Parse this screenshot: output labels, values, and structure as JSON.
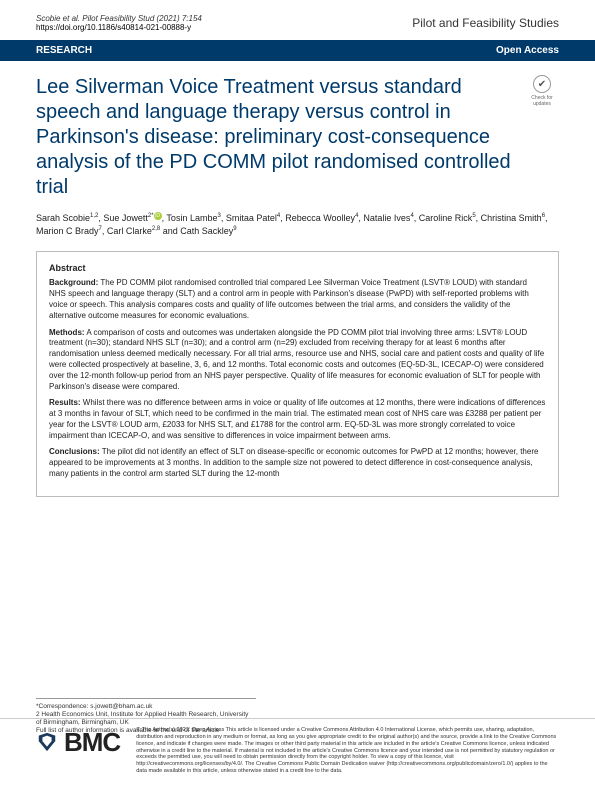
{
  "header": {
    "citation": "Scobie et al. Pilot Feasibility Stud    (2021) 7:154",
    "doi": "https://doi.org/10.1186/s40814-021-00888-y",
    "journal": "Pilot and Feasibility Studies"
  },
  "banner": {
    "left": "RESEARCH",
    "right": "Open Access"
  },
  "check": {
    "top": "Check for",
    "bottom": "updates",
    "glyph": "✔"
  },
  "title": "Lee Silverman Voice Treatment versus standard speech and language therapy versus control in Parkinson's disease: preliminary cost-consequence analysis of the PD COMM pilot randomised controlled trial",
  "authors_html": "Sarah Scobie<sup>1,2</sup>, Sue Jowett<sup>2*</sup><span class='orcid'>iD</span>, Tosin Lambe<sup>3</sup>, Smitaa Patel<sup>4</sup>, Rebecca Woolley<sup>4</sup>, Natalie Ives<sup>4</sup>, Caroline Rick<sup>5</sup>, Christina Smith<sup>6</sup>, Marion C Brady<sup>7</sup>, Carl Clarke<sup>2,8</sup> and Cath Sackley<sup>9</sup>",
  "abstract": {
    "heading": "Abstract",
    "background_label": "Background:",
    "background": " The PD COMM pilot randomised controlled trial compared Lee Silverman Voice Treatment (LSVT® LOUD) with standard NHS speech and language therapy (SLT) and a control arm in people with Parkinson's disease (PwPD) with self-reported problems with voice or speech. This analysis compares costs and quality of life outcomes between the trial arms, and considers the validity of the alternative outcome measures for economic evaluations.",
    "methods_label": "Methods:",
    "methods": " A comparison of costs and outcomes was undertaken alongside the PD COMM pilot trial involving three arms: LSVT® LOUD treatment (n=30); standard NHS SLT (n=30); and a control arm (n=29) excluded from receiving therapy for at least 6 months after randomisation unless deemed medically necessary. For all trial arms, resource use and NHS, social care and patient costs and quality of life were collected prospectively at baseline, 3, 6, and 12 months. Total economic costs and outcomes (EQ-5D-3L, ICECAP-O) were considered over the 12-month follow-up period from an NHS payer perspective. Quality of life measures for economic evaluation of SLT for people with Parkinson's disease were compared.",
    "results_label": "Results:",
    "results": " Whilst there was no difference between arms in voice or quality of life outcomes at 12 months, there were indications of differences at 3 months in favour of SLT, which need to be confirmed in the main trial. The estimated mean cost of NHS care was £3288 per patient per year for the LSVT® LOUD arm, £2033 for NHS SLT, and £1788 for the control arm. EQ-5D-3L was more strongly correlated to voice impairment than ICECAP-O, and was sensitive to differences in voice impairment between arms.",
    "conclusions_label": "Conclusions:",
    "conclusions": " The pilot did not identify an effect of SLT on disease-specific or economic outcomes for PwPD at 12 months; however, there appeared to be improvements at 3 months. In addition to the sample size not powered to detect difference in cost-consequence analysis, many patients in the control arm started SLT during the 12-month"
  },
  "correspondence": {
    "l1": "*Correspondence: s.jowett@bham.ac.uk",
    "l2": "2 Health Economics Unit, Institute for Applied Health Research, University",
    "l3": "of Birmingham, Birmingham, UK",
    "l4": "Full list of author information is available at the end of the article"
  },
  "footer": {
    "brand": "BMC",
    "license": "© The Author(s) 2021. Open Access This article is licensed under a Creative Commons Attribution 4.0 International License, which permits use, sharing, adaptation, distribution and reproduction in any medium or format, as long as you give appropriate credit to the original author(s) and the source, provide a link to the Creative Commons licence, and indicate if changes were made. The images or other third party material in this article are included in the article's Creative Commons licence, unless indicated otherwise in a credit line to the material. If material is not included in the article's Creative Commons licence and your intended use is not permitted by statutory regulation or exceeds the permitted use, you will need to obtain permission directly from the copyright holder. To view a copy of this licence, visit http://creativecommons.org/licenses/by/4.0/. The Creative Commons Public Domain Dedication waiver (http://creativecommons.org/publicdomain/zero/1.0/) applies to the data made available in this article, unless otherwise stated in a credit line to the data."
  },
  "colors": {
    "brand": "#003a6b",
    "orcid": "#a6ce39"
  }
}
